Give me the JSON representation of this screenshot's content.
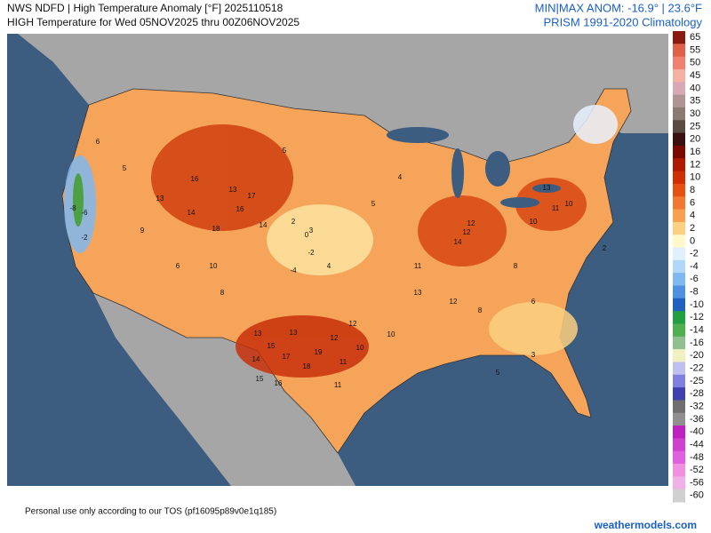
{
  "header": {
    "title": "NWS NDFD | High Temperature Anomaly [°F] 2025110518",
    "subtitle": "HIGH Temperature for Wed 05NOV2025 thru 00Z06NOV2025",
    "range": "MIN|MAX ANOM: -16.9° | 23.6°F",
    "climatology": "PRISM 1991-2020 Climatology"
  },
  "colorbar": {
    "labels": [
      65,
      55,
      50,
      45,
      40,
      35,
      30,
      25,
      20,
      16,
      12,
      10,
      8,
      6,
      4,
      2,
      0,
      -2,
      -4,
      -6,
      -8,
      -10,
      -12,
      -14,
      -16,
      -20,
      -22,
      -25,
      -28,
      -32,
      -36,
      -40,
      -44,
      -48,
      -52,
      -56,
      -60
    ],
    "colors": [
      "#8b1a10",
      "#e0604a",
      "#f08070",
      "#f4b0a0",
      "#d8a8b4",
      "#b09494",
      "#8a7a70",
      "#5a4a40",
      "#3a1010",
      "#7a0a00",
      "#b01a00",
      "#d03000",
      "#e85010",
      "#f07830",
      "#f8a050",
      "#fcd080",
      "#fff8c8",
      "#e0f0ff",
      "#b0d8f8",
      "#80b8f0",
      "#5090e0",
      "#2060c0",
      "#20a040",
      "#50b050",
      "#90c090",
      "#f0f0c0",
      "#c0c0f0",
      "#8080e0",
      "#4040b0",
      "#707070",
      "#909090",
      "#c020c0",
      "#d040d0",
      "#e060e0",
      "#f090e0",
      "#f0b0e8",
      "#d0d0d0"
    ]
  },
  "map": {
    "anomaly_labels": [
      19,
      18,
      17,
      16,
      15,
      15,
      14,
      13,
      13,
      12,
      12,
      11,
      11,
      10,
      10,
      17,
      16,
      14,
      13,
      16,
      18,
      14,
      13,
      12,
      14,
      12,
      13,
      11,
      10,
      8,
      8,
      6,
      5,
      5,
      4,
      3,
      2,
      0,
      -2,
      -4,
      -6,
      -8,
      -2,
      5,
      6,
      9,
      10,
      12,
      13,
      10,
      11,
      8,
      6,
      5,
      4,
      3,
      2
    ]
  },
  "footer": {
    "tos": "Personal use only according to our TOS (pf16095p89v0e1q185)",
    "brand": "weathermodels.com"
  }
}
